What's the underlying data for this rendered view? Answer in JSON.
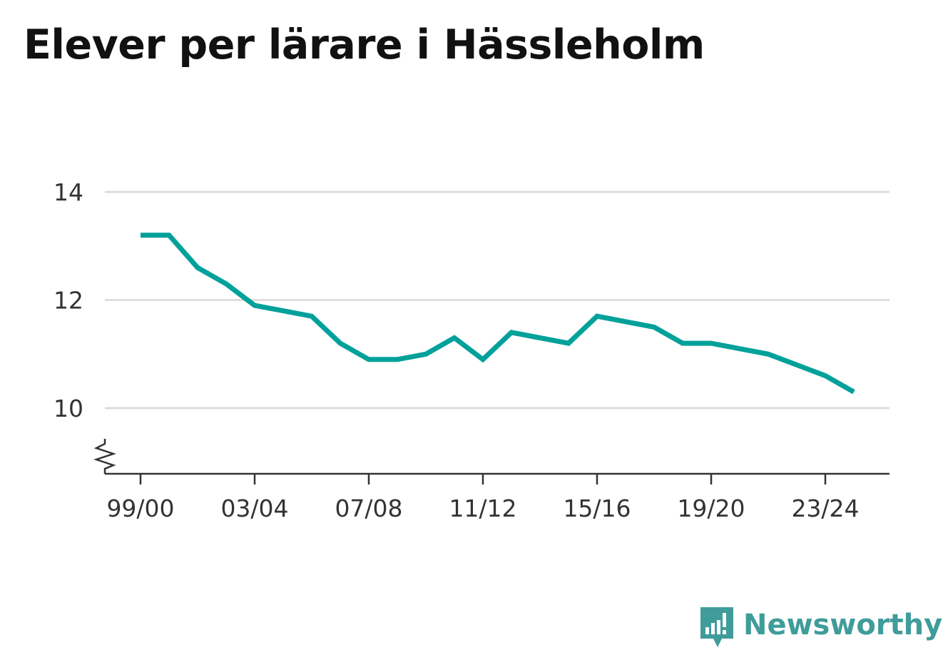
{
  "title": "Elever per lärare i Hässleholm",
  "brand": {
    "name": "Newsworthy",
    "icon": "newsworthy-logo-icon",
    "color": "#3f9c9a"
  },
  "chart_data": {
    "type": "line",
    "title": "Elever per lärare i Hässleholm",
    "xlabel": "",
    "ylabel": "",
    "x": [
      "99/00",
      "00/01",
      "01/02",
      "02/03",
      "03/04",
      "04/05",
      "05/06",
      "06/07",
      "07/08",
      "08/09",
      "09/10",
      "10/11",
      "11/12",
      "12/13",
      "13/14",
      "14/15",
      "15/16",
      "16/17",
      "17/18",
      "18/19",
      "19/20",
      "20/21",
      "21/22",
      "22/23",
      "23/24",
      "24/25"
    ],
    "series": [
      {
        "values": [
          13.2,
          13.2,
          12.6,
          12.3,
          11.9,
          11.8,
          11.7,
          11.2,
          10.9,
          10.9,
          11.0,
          11.3,
          10.9,
          11.4,
          11.3,
          11.2,
          11.7,
          11.6,
          11.5,
          11.2,
          11.2,
          11.1,
          11.0,
          10.8,
          10.6,
          10.3
        ],
        "color": "#00a19a"
      }
    ],
    "x_tick_labels": [
      "99/00",
      "03/04",
      "07/08",
      "11/12",
      "15/16",
      "19/20",
      "23/24"
    ],
    "y_ticks": [
      "10",
      "12",
      "14"
    ],
    "ylim": [
      8.8,
      14
    ],
    "axis_break": true,
    "grid": true,
    "legend": "none"
  }
}
